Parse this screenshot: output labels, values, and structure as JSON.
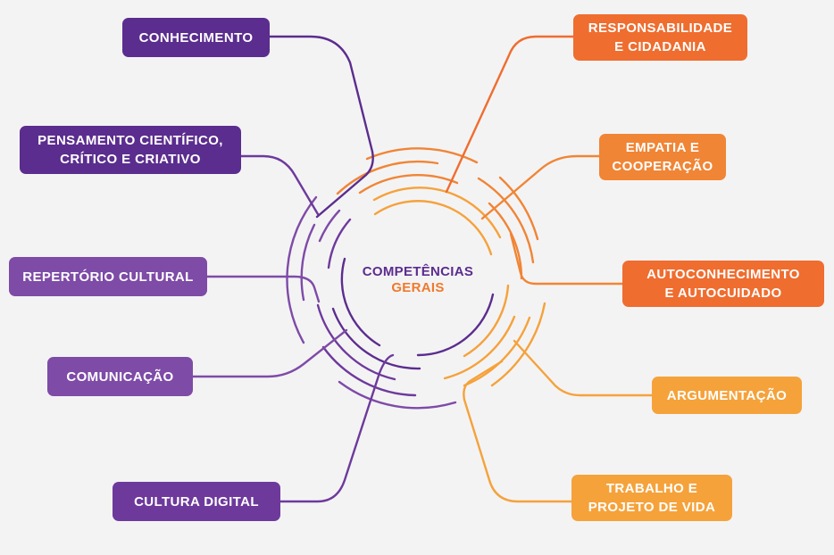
{
  "center": {
    "line1": "COMPETÊNCIAS",
    "line2": "GERAIS"
  },
  "left": [
    {
      "lines": [
        "CONHECIMENTO"
      ]
    },
    {
      "lines": [
        "PENSAMENTO CIENTÍFICO,",
        "CRÍTICO E CRIATIVO"
      ]
    },
    {
      "lines": [
        "REPERTÓRIO CULTURAL"
      ]
    },
    {
      "lines": [
        "COMUNICAÇÃO"
      ]
    },
    {
      "lines": [
        "CULTURA DIGITAL"
      ]
    }
  ],
  "right": [
    {
      "lines": [
        "RESPONSABILIDADE",
        "E CIDADANIA"
      ]
    },
    {
      "lines": [
        "EMPATIA E",
        "COOPERAÇÃO"
      ]
    },
    {
      "lines": [
        "AUTOCONHECIMENTO",
        "E AUTOCUIDADO"
      ]
    },
    {
      "lines": [
        "ARGUMENTAÇÃO"
      ]
    },
    {
      "lines": [
        "TRABALHO E",
        "PROJETO DE VIDA"
      ]
    }
  ],
  "colors": {
    "purple_dark": "#5b2d8e",
    "purple_mid": "#7e4ba7",
    "orange_dark": "#ef6d2f",
    "orange_light": "#f5a23b",
    "background": "#f4f3f4"
  }
}
